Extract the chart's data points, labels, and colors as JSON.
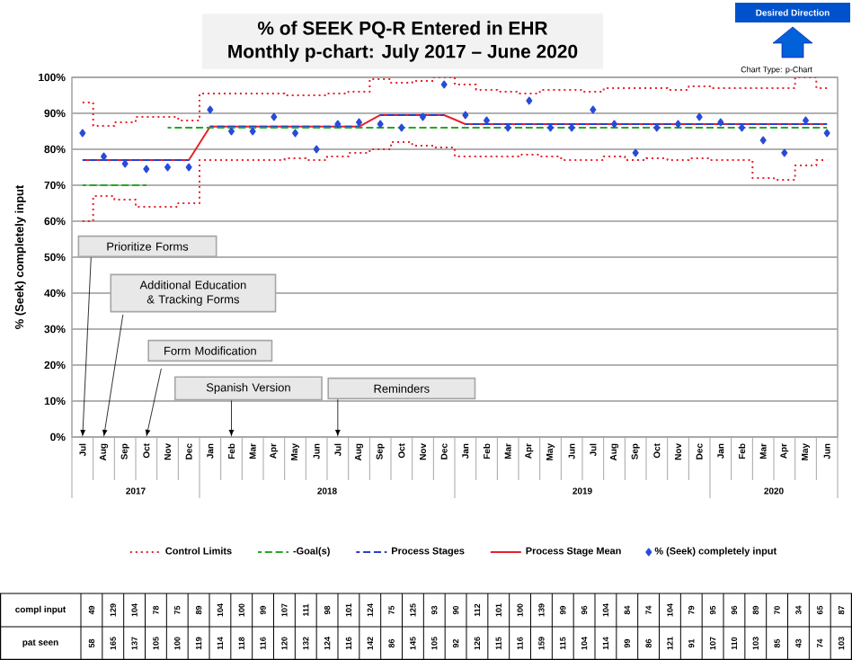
{
  "chart_data": {
    "type": "line",
    "title": "% of SEEK PQ-R Entered in EHR",
    "subtitle": "Monthly p-chart: July 2017 – June 2020",
    "ylabel": "% (Seek) completely input",
    "categories": [
      "Jul",
      "Aug",
      "Sep",
      "Oct",
      "Nov",
      "Dec",
      "Jan",
      "Feb",
      "Mar",
      "Apr",
      "May",
      "Jun",
      "Jul",
      "Aug",
      "Sep",
      "Oct",
      "Nov",
      "Dec",
      "Jan",
      "Feb",
      "Mar",
      "Apr",
      "May",
      "Jun",
      "Jul",
      "Aug",
      "Sep",
      "Oct",
      "Nov",
      "Dec",
      "Jan",
      "Feb",
      "Mar",
      "Apr",
      "May",
      "Jun"
    ],
    "ylim": [
      0,
      100
    ],
    "yticks": [
      {
        "value": 0,
        "label": "0%"
      },
      {
        "value": 10,
        "label": "10%"
      },
      {
        "value": 20,
        "label": "20%"
      },
      {
        "value": 30,
        "label": "30%"
      },
      {
        "value": 40,
        "label": "40%"
      },
      {
        "value": 50,
        "label": "50%"
      },
      {
        "value": 60,
        "label": "60%"
      },
      {
        "value": 70,
        "label": "70%"
      },
      {
        "value": 80,
        "label": "80%"
      },
      {
        "value": 90,
        "label": "90%"
      },
      {
        "value": 100,
        "label": "100%"
      }
    ],
    "grid": "y",
    "legend": "bottom",
    "series": [
      {
        "name": "Control Limits",
        "type": "step",
        "line_style": "dotted",
        "color": "#e8202a",
        "values": [
          93,
          86.5,
          87.5,
          89,
          89,
          88,
          95.5,
          95.5,
          95.5,
          95.5,
          95,
          95,
          95.5,
          96,
          99.5,
          98.5,
          99,
          100,
          98,
          96.5,
          96,
          95.5,
          96.5,
          96.5,
          96,
          97,
          97,
          97,
          96.5,
          97.5,
          97,
          97,
          97,
          97,
          100,
          97
        ]
      },
      {
        "type": "step",
        "line_style": "dotted",
        "color": "#e8202a",
        "values": [
          60,
          67,
          66,
          64,
          64,
          65,
          77,
          77,
          77,
          77,
          77.5,
          77,
          78,
          79,
          80,
          82,
          81,
          80.5,
          78,
          78,
          78,
          78.5,
          78,
          77,
          77,
          78,
          77,
          77.5,
          77,
          77.5,
          77,
          77,
          72,
          71.5,
          75.5,
          77
        ]
      },
      {
        "name": "-Goal(s)",
        "type": "line",
        "line_style": "dashed",
        "color": "#22aa22",
        "values": [
          70,
          70,
          70,
          70,
          86,
          86,
          86,
          86,
          86,
          86,
          86,
          86,
          86,
          86,
          86,
          86,
          86,
          86,
          86,
          86,
          86,
          86,
          86,
          86,
          86,
          86,
          86,
          86,
          86,
          86,
          86,
          86,
          86,
          86,
          86,
          86
        ]
      },
      {
        "name": "Process Stages",
        "type": "line",
        "line_style": "dashed",
        "color": "#2a3fd0",
        "values": [
          77,
          77,
          77,
          77,
          77,
          77,
          86.3,
          86.3,
          86.3,
          86.3,
          86.3,
          86.3,
          86.3,
          86.3,
          89.5,
          89.5,
          89.5,
          89.5,
          87,
          87,
          87,
          87,
          87,
          87,
          87,
          87,
          87,
          87,
          87,
          87,
          87,
          87,
          87,
          87,
          87,
          87
        ]
      },
      {
        "name": "Process Stage Mean",
        "line_style": "solid",
        "color": "#e8202a",
        "values": [
          77,
          77,
          77,
          77,
          77,
          77,
          86.3,
          86.3,
          86.3,
          86.3,
          86.3,
          86.3,
          86.3,
          86.3,
          89.5,
          89.5,
          89.5,
          89.5,
          87,
          87,
          87,
          87,
          87,
          87,
          87,
          87,
          87,
          87,
          87,
          87,
          87,
          87,
          87,
          87,
          87,
          87
        ]
      },
      {
        "name": "% (Seek) completely input",
        "type": "scatter",
        "marker": "diamond",
        "color": "#2a4bd7",
        "values": [
          84.5,
          78,
          76,
          74.5,
          75,
          75,
          91,
          85,
          85,
          89,
          84.5,
          80,
          87,
          87.5,
          87,
          86,
          89,
          98,
          89.5,
          88,
          86,
          93.5,
          86,
          86,
          91,
          87,
          79,
          86,
          87,
          89,
          87.5,
          86,
          82.5,
          79,
          88,
          84.5
        ]
      }
    ],
    "annotations": [
      "Prioritize Forms",
      "Additional Education & Tracking Forms",
      "Form Modification",
      "Spanish Version",
      "Reminders",
      "Desired Direction",
      "Chart Type: p-Chart",
      "2017",
      "2018",
      "2019",
      "2020",
      "compl input",
      "49",
      "129",
      "104",
      "78",
      "75",
      "89",
      "104",
      "100",
      "99",
      "107",
      "111",
      "98",
      "101",
      "124",
      "75",
      "125",
      "93",
      "90",
      "112",
      "101",
      "100",
      "139",
      "99",
      "96",
      "104",
      "84",
      "74",
      "104",
      "79",
      "95",
      "96",
      "89",
      "70",
      "34",
      "65",
      "87",
      "pat seen",
      "58",
      "165",
      "137",
      "105",
      "100",
      "119",
      "114",
      "118",
      "116",
      "120",
      "132",
      "124",
      "116",
      "142",
      "86",
      "145",
      "105",
      "92",
      "126",
      "115",
      "116",
      "159",
      "115",
      "104",
      "114",
      "99",
      "86",
      "121",
      "91",
      "107",
      "110",
      "103",
      "85",
      "43",
      "74",
      "103"
    ]
  }
}
